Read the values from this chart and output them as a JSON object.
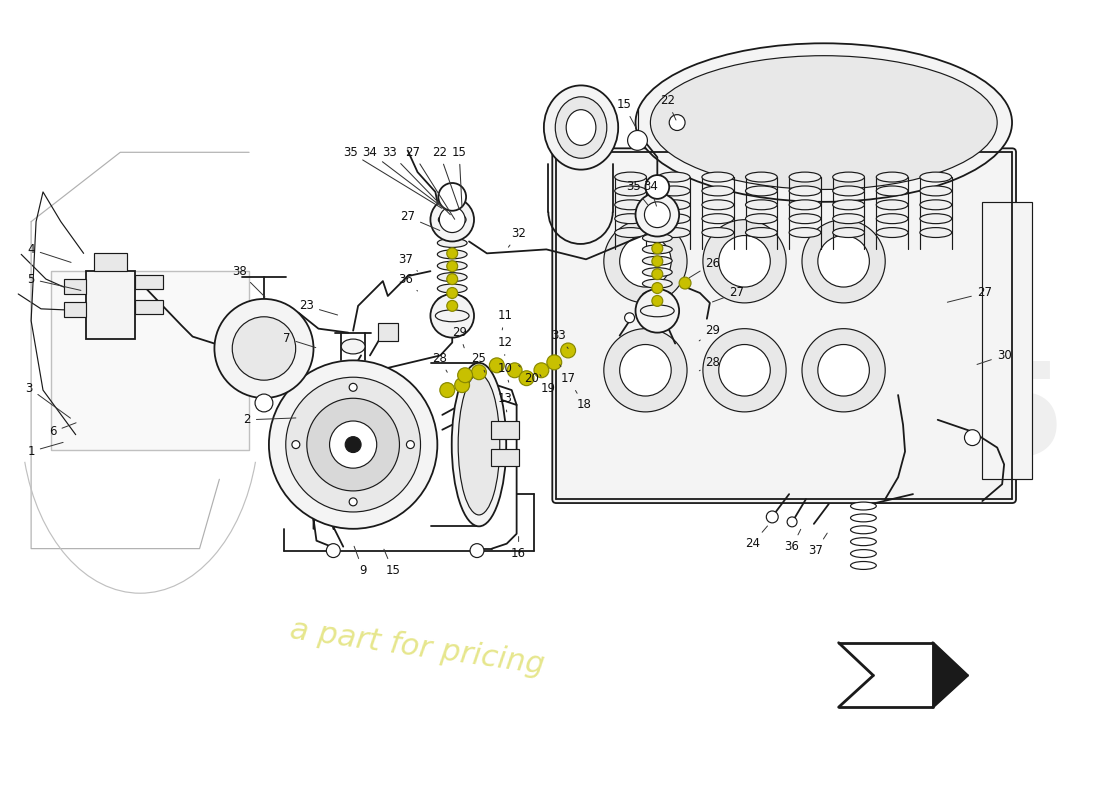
{
  "bg_color": "#ffffff",
  "lc": "#1a1a1a",
  "lw": 1.3,
  "lwt": 0.85,
  "fc_light": "#f4f4f4",
  "fc_mid": "#e8e8e8",
  "fc_dark": "#d8d8d8",
  "yellow_fit": "#c8c000",
  "label_fs": 8.5,
  "wm1": "#e0e0e0",
  "wm2": "#d8d800",
  "figw": 11.0,
  "figh": 8.0,
  "dpi": 100
}
